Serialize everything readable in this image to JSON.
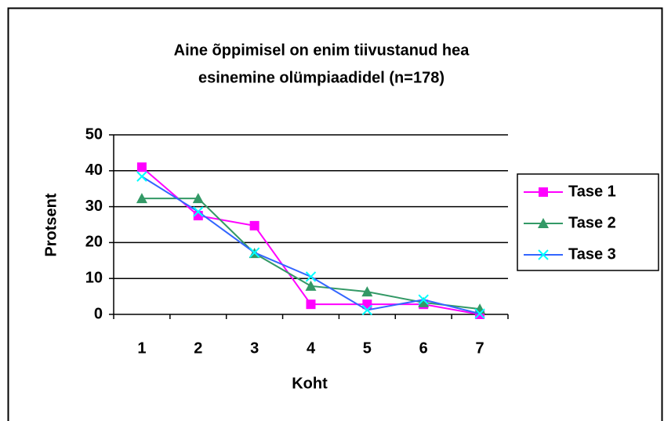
{
  "chart_data": {
    "type": "line",
    "title": [
      "Aine õppimisel on enim tiivustanud hea",
      "esinemine olümpiaadidel (n=178)"
    ],
    "x_label": "Koht",
    "y_label": "Protsent",
    "categories": [
      "1",
      "2",
      "3",
      "4",
      "5",
      "6",
      "7"
    ],
    "series": [
      {
        "name": "Tase 1",
        "color": "#ff00ff",
        "marker_color": "#ff00ff",
        "marker": "square",
        "values": [
          41.0,
          27.5,
          24.7,
          2.8,
          2.8,
          2.8,
          0
        ]
      },
      {
        "name": "Tase 2",
        "color": "#339966",
        "marker_color": "#339966",
        "marker": "triangle",
        "values": [
          32.3,
          32.3,
          17.0,
          7.9,
          6.3,
          3.3,
          1.5
        ]
      },
      {
        "name": "Tase 3",
        "color": "#3366ff",
        "marker_color": "#00ffff",
        "marker": "x",
        "values": [
          38.4,
          28.6,
          17.2,
          10.5,
          1.2,
          4.1,
          0.2
        ]
      }
    ],
    "ylim": [
      0,
      50
    ],
    "yticks": [
      0,
      10,
      20,
      30,
      40,
      50
    ],
    "grid": true,
    "legend": "right"
  }
}
